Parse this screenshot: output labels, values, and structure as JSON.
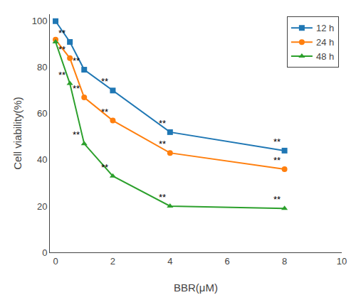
{
  "chart_data": {
    "type": "line",
    "x_label": "BBR(μM)",
    "y_label": "Cell viability(%)",
    "x": [
      0,
      0.5,
      1,
      2,
      4,
      8
    ],
    "series": [
      {
        "name": "12 h",
        "marker": "square",
        "values": [
          100,
          91,
          79,
          70,
          52,
          44
        ]
      },
      {
        "name": "24 h",
        "marker": "circle",
        "values": [
          92,
          84,
          67,
          57,
          43,
          36
        ]
      },
      {
        "name": "48 h",
        "marker": "triangle-up",
        "values": [
          91,
          73,
          47,
          33,
          20,
          19
        ]
      }
    ],
    "annotations": [
      {
        "x": 0.5,
        "y": 91,
        "text": "**"
      },
      {
        "x": 1,
        "y": 79,
        "text": "**"
      },
      {
        "x": 2,
        "y": 70,
        "text": "**"
      },
      {
        "x": 4,
        "y": 52,
        "text": "**"
      },
      {
        "x": 8,
        "y": 44,
        "text": "**"
      },
      {
        "x": 0.5,
        "y": 84,
        "text": "**"
      },
      {
        "x": 1,
        "y": 67,
        "text": "**"
      },
      {
        "x": 2,
        "y": 57,
        "text": "**"
      },
      {
        "x": 4,
        "y": 43,
        "text": "**"
      },
      {
        "x": 8,
        "y": 36,
        "text": "**"
      },
      {
        "x": 0.5,
        "y": 73,
        "text": "**"
      },
      {
        "x": 1,
        "y": 47,
        "text": "**"
      },
      {
        "x": 2,
        "y": 33,
        "text": "**"
      },
      {
        "x": 4,
        "y": 20,
        "text": "**"
      },
      {
        "x": 8,
        "y": 19,
        "text": "**"
      }
    ],
    "xlim": [
      -0.2,
      10
    ],
    "ylim": [
      0,
      103
    ],
    "xticks": [
      0,
      2,
      4,
      6,
      8,
      10
    ],
    "yticks": [
      0,
      20,
      40,
      60,
      80,
      100
    ],
    "grid": false,
    "legend": "upper right"
  }
}
